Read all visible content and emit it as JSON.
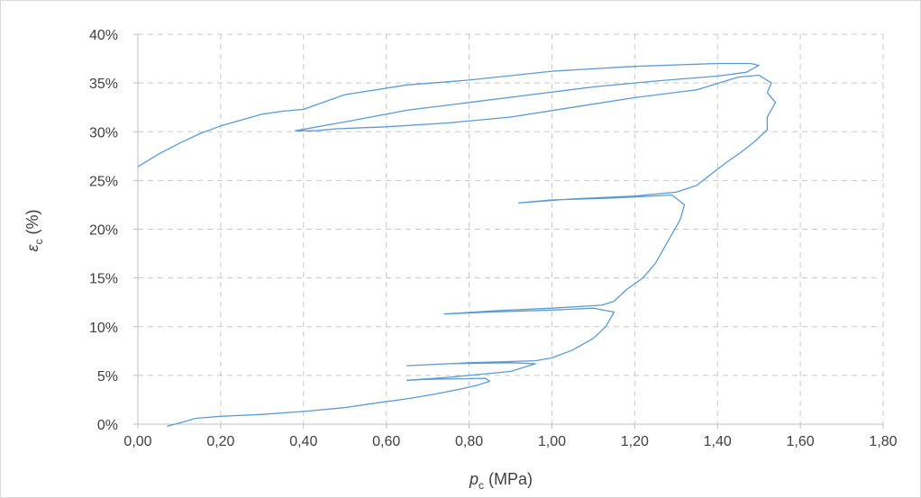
{
  "chart_data": {
    "type": "line",
    "xlabel": {
      "main": "p",
      "sub": "c",
      "unit": " (MPa)"
    },
    "ylabel": {
      "main": "ε",
      "sub": "c",
      "unit": " (%)"
    },
    "xlim": [
      0,
      1.8
    ],
    "ylim": [
      0,
      40
    ],
    "x_ticks": [
      "0,00",
      "0,20",
      "0,40",
      "0,60",
      "0,80",
      "1,00",
      "1,20",
      "1,40",
      "1,60",
      "1,80"
    ],
    "y_ticks": [
      "0%",
      "5%",
      "10%",
      "15%",
      "20%",
      "25%",
      "30%",
      "35%",
      "40%"
    ],
    "grid": true,
    "line_color": "#5b9bd5",
    "series": [
      {
        "points": [
          [
            0.07,
            -0.2
          ],
          [
            0.1,
            0.1
          ],
          [
            0.14,
            0.6
          ],
          [
            0.2,
            0.8
          ],
          [
            0.3,
            1.0
          ],
          [
            0.4,
            1.3
          ],
          [
            0.5,
            1.7
          ],
          [
            0.58,
            2.2
          ],
          [
            0.65,
            2.6
          ],
          [
            0.72,
            3.1
          ],
          [
            0.78,
            3.6
          ],
          [
            0.82,
            4.0
          ],
          [
            0.85,
            4.4
          ],
          [
            0.84,
            4.7
          ],
          [
            0.7,
            4.6
          ],
          [
            0.65,
            4.5
          ],
          [
            0.75,
            4.8
          ],
          [
            0.9,
            5.4
          ],
          [
            0.96,
            6.2
          ],
          [
            0.9,
            6.3
          ],
          [
            0.75,
            6.2
          ],
          [
            0.65,
            6.0
          ],
          [
            0.8,
            6.3
          ],
          [
            0.96,
            6.5
          ],
          [
            1.0,
            6.8
          ],
          [
            1.05,
            7.6
          ],
          [
            1.1,
            8.8
          ],
          [
            1.13,
            10.0
          ],
          [
            1.15,
            11.5
          ],
          [
            1.1,
            11.9
          ],
          [
            1.0,
            11.7
          ],
          [
            0.85,
            11.5
          ],
          [
            0.74,
            11.3
          ],
          [
            0.85,
            11.6
          ],
          [
            1.0,
            11.9
          ],
          [
            1.12,
            12.2
          ],
          [
            1.15,
            12.6
          ],
          [
            1.18,
            13.8
          ],
          [
            1.22,
            15.0
          ],
          [
            1.25,
            16.5
          ],
          [
            1.27,
            18.0
          ],
          [
            1.29,
            19.5
          ],
          [
            1.31,
            21.0
          ],
          [
            1.32,
            22.5
          ],
          [
            1.29,
            23.5
          ],
          [
            1.15,
            23.2
          ],
          [
            1.0,
            23.0
          ],
          [
            0.92,
            22.7
          ],
          [
            1.05,
            23.1
          ],
          [
            1.2,
            23.4
          ],
          [
            1.3,
            23.8
          ],
          [
            1.35,
            24.5
          ],
          [
            1.38,
            25.5
          ],
          [
            1.42,
            26.8
          ],
          [
            1.46,
            28.0
          ],
          [
            1.49,
            29.0
          ],
          [
            1.52,
            30.2
          ],
          [
            1.52,
            31.5
          ],
          [
            1.54,
            33.0
          ],
          [
            1.52,
            34.0
          ],
          [
            1.53,
            35.0
          ],
          [
            1.5,
            35.8
          ],
          [
            1.45,
            35.6
          ],
          [
            1.35,
            34.3
          ],
          [
            1.2,
            33.5
          ],
          [
            1.05,
            32.5
          ],
          [
            0.9,
            31.5
          ],
          [
            0.75,
            30.9
          ],
          [
            0.6,
            30.5
          ],
          [
            0.48,
            30.3
          ],
          [
            0.43,
            30.1
          ],
          [
            0.38,
            30.1
          ],
          [
            0.5,
            31.0
          ],
          [
            0.65,
            32.2
          ],
          [
            0.8,
            33.0
          ],
          [
            0.95,
            33.8
          ],
          [
            1.1,
            34.6
          ],
          [
            1.25,
            35.2
          ],
          [
            1.4,
            35.7
          ],
          [
            1.47,
            36.1
          ],
          [
            1.5,
            36.8
          ],
          [
            1.48,
            37.0
          ],
          [
            1.4,
            37.0
          ],
          [
            1.2,
            36.7
          ],
          [
            1.0,
            36.2
          ],
          [
            0.8,
            35.3
          ],
          [
            0.65,
            34.8
          ],
          [
            0.5,
            33.8
          ],
          [
            0.4,
            32.3
          ],
          [
            0.35,
            32.1
          ],
          [
            0.3,
            31.8
          ],
          [
            0.2,
            30.6
          ],
          [
            0.15,
            29.8
          ],
          [
            0.1,
            28.8
          ],
          [
            0.05,
            27.7
          ],
          [
            0.0,
            26.4
          ]
        ]
      }
    ]
  }
}
